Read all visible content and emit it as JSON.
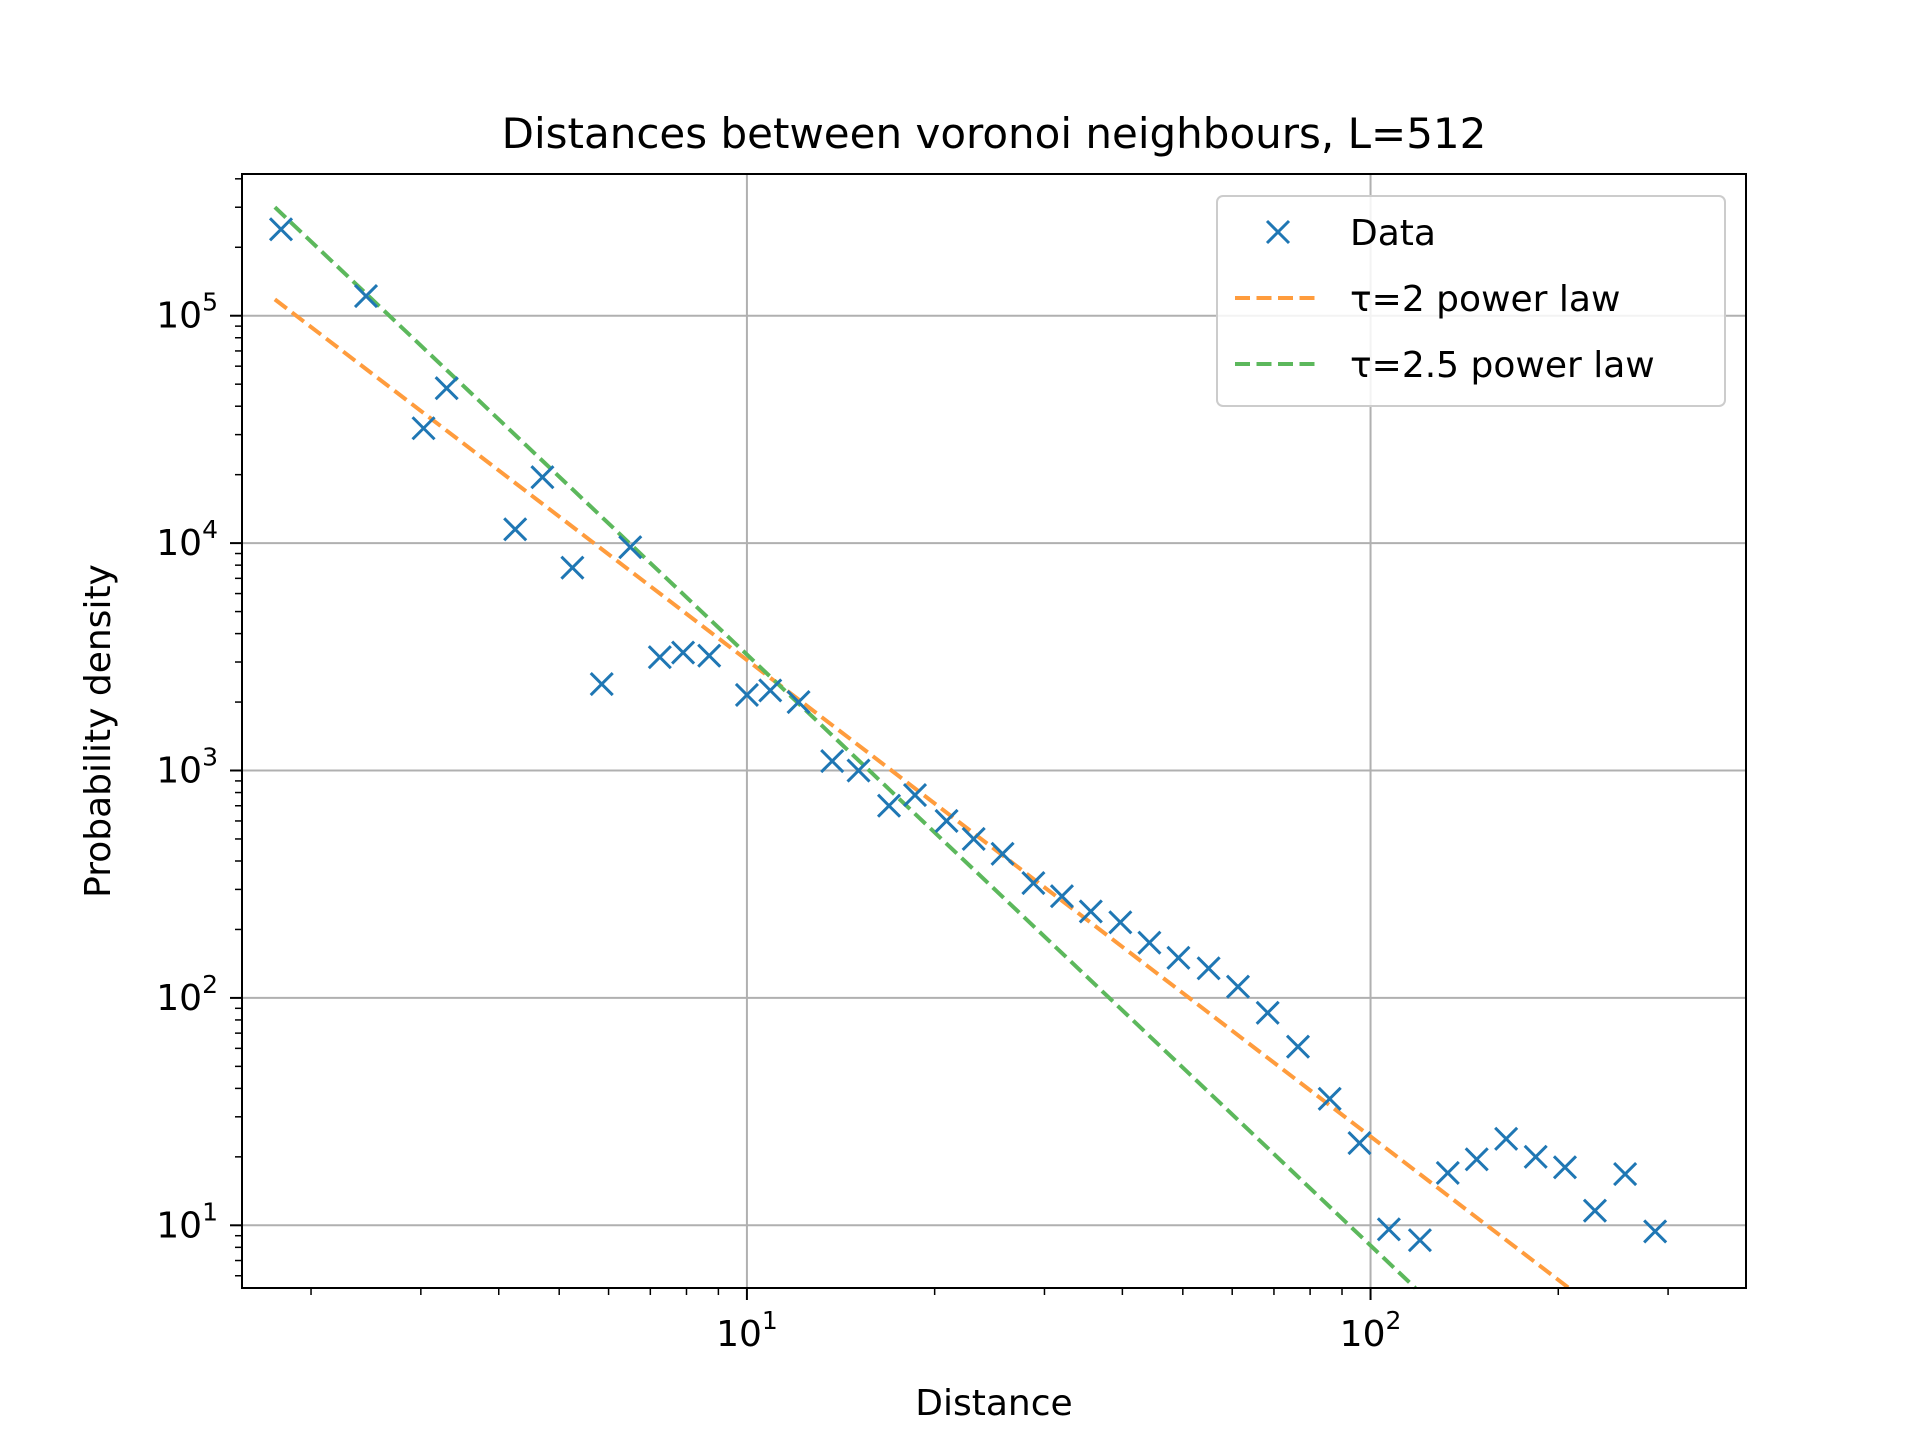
{
  "chart_data": {
    "type": "scatter",
    "title": "Distances between voronoi neighbours, L=512",
    "xlabel": "Distance",
    "ylabel": "Probability density",
    "xscale": "log",
    "yscale": "log",
    "xlim": [
      1.55,
      400
    ],
    "ylim": [
      5.3,
      420000
    ],
    "grid": true,
    "legend_position": "top-right",
    "x_ticks": [
      {
        "value": 10,
        "base": "10",
        "exp": "1"
      },
      {
        "value": 100,
        "base": "10",
        "exp": "2"
      }
    ],
    "y_ticks": [
      {
        "value": 10,
        "base": "10",
        "exp": "1"
      },
      {
        "value": 100,
        "base": "10",
        "exp": "2"
      },
      {
        "value": 1000,
        "base": "10",
        "exp": "3"
      },
      {
        "value": 10000,
        "base": "10",
        "exp": "4"
      },
      {
        "value": 100000,
        "base": "10",
        "exp": "5"
      }
    ],
    "series": [
      {
        "name": "Data",
        "type": "scatter",
        "marker": "x",
        "color": "#1f77b4",
        "points": [
          [
            1.79,
            240000
          ],
          [
            2.45,
            122000
          ],
          [
            3.03,
            32000
          ],
          [
            3.3,
            48000
          ],
          [
            4.25,
            11500
          ],
          [
            4.7,
            19500
          ],
          [
            5.25,
            7800
          ],
          [
            5.85,
            2400
          ],
          [
            6.5,
            9600
          ],
          [
            7.25,
            3150
          ],
          [
            7.9,
            3300
          ],
          [
            8.7,
            3200
          ],
          [
            10.0,
            2150
          ],
          [
            10.9,
            2250
          ],
          [
            12.1,
            2000
          ],
          [
            13.7,
            1100
          ],
          [
            15.1,
            1000
          ],
          [
            16.9,
            700
          ],
          [
            18.6,
            780
          ],
          [
            20.9,
            600
          ],
          [
            23.1,
            500
          ],
          [
            25.7,
            430
          ],
          [
            28.8,
            320
          ],
          [
            32.0,
            280
          ],
          [
            35.6,
            240
          ],
          [
            39.7,
            215
          ],
          [
            44.2,
            175
          ],
          [
            49.2,
            150
          ],
          [
            55.0,
            135
          ],
          [
            61.3,
            112
          ],
          [
            68.4,
            86
          ],
          [
            76.5,
            61
          ],
          [
            86.0,
            36
          ],
          [
            96.0,
            23
          ],
          [
            107,
            9.6
          ],
          [
            120,
            8.6
          ],
          [
            133,
            17
          ],
          [
            148,
            19.5
          ],
          [
            165,
            24
          ],
          [
            184,
            20
          ],
          [
            205,
            18
          ],
          [
            229,
            11.6
          ],
          [
            256,
            16.8
          ],
          [
            286,
            9.4
          ]
        ]
      },
      {
        "name": "τ=2 power law",
        "type": "line",
        "style": "dashed",
        "color": "#ff9c3d",
        "points": [
          [
            1.75,
            118000
          ],
          [
            208,
            5.3
          ]
        ]
      },
      {
        "name": "τ=2.5 power law",
        "type": "line",
        "style": "dashed",
        "color": "#5cb85c",
        "points": [
          [
            1.75,
            300000
          ],
          [
            118,
            5.3
          ]
        ]
      }
    ]
  }
}
